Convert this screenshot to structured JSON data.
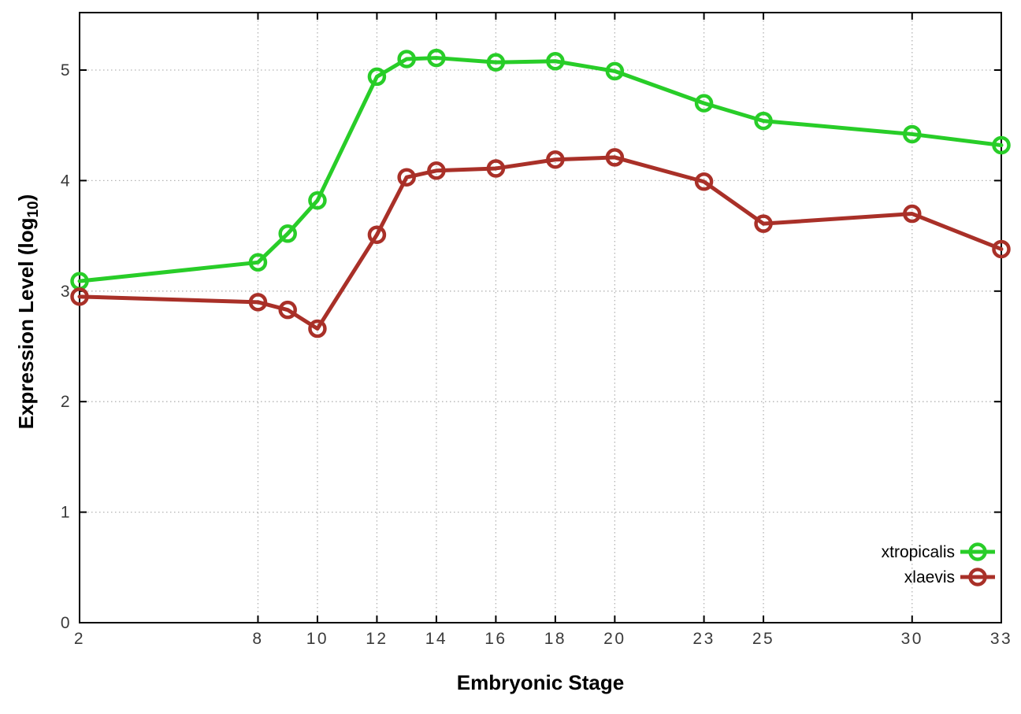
{
  "figure": {
    "background": "#ffffff",
    "xlabel": "Embryonic Stage",
    "ylabel_prefix": "Expression Level (log",
    "ylabel_sub": "10",
    "ylabel_suffix": ")"
  },
  "chart_data": {
    "type": "line",
    "title": "",
    "xlabel": "Embryonic Stage",
    "ylabel": "Expression Level (log10)",
    "x": [
      2,
      8,
      9,
      10,
      12,
      13,
      14,
      16,
      18,
      20,
      23,
      25,
      30,
      33
    ],
    "x_tick_labels": [
      "2",
      "8",
      "10",
      "12",
      "14",
      "16",
      "18",
      "20",
      "23",
      "25",
      "30",
      "33"
    ],
    "x_tick_values": [
      2,
      8,
      10,
      12,
      14,
      16,
      18,
      20,
      23,
      25,
      30,
      33
    ],
    "y_tick_labels": [
      "0",
      "1",
      "2",
      "3",
      "4",
      "5"
    ],
    "y_tick_values": [
      0,
      1,
      2,
      3,
      4,
      5
    ],
    "xlim": [
      2,
      33
    ],
    "ylim": [
      0,
      5.52
    ],
    "grid": true,
    "grid_color": "#b3b3b3",
    "border_color": "#000000",
    "legend_position": "inside-bottom-right",
    "series": [
      {
        "name": "xtropicalis",
        "color": "#28cd28",
        "values": [
          3.09,
          3.26,
          3.52,
          3.82,
          4.94,
          5.1,
          5.11,
          5.07,
          5.08,
          4.99,
          4.7,
          4.54,
          4.42,
          4.32
        ]
      },
      {
        "name": "xlaevis",
        "color": "#a93028",
        "values": [
          2.95,
          2.9,
          2.83,
          2.66,
          3.51,
          4.03,
          4.09,
          4.11,
          4.19,
          4.21,
          3.99,
          3.61,
          3.7,
          3.38
        ]
      }
    ]
  }
}
